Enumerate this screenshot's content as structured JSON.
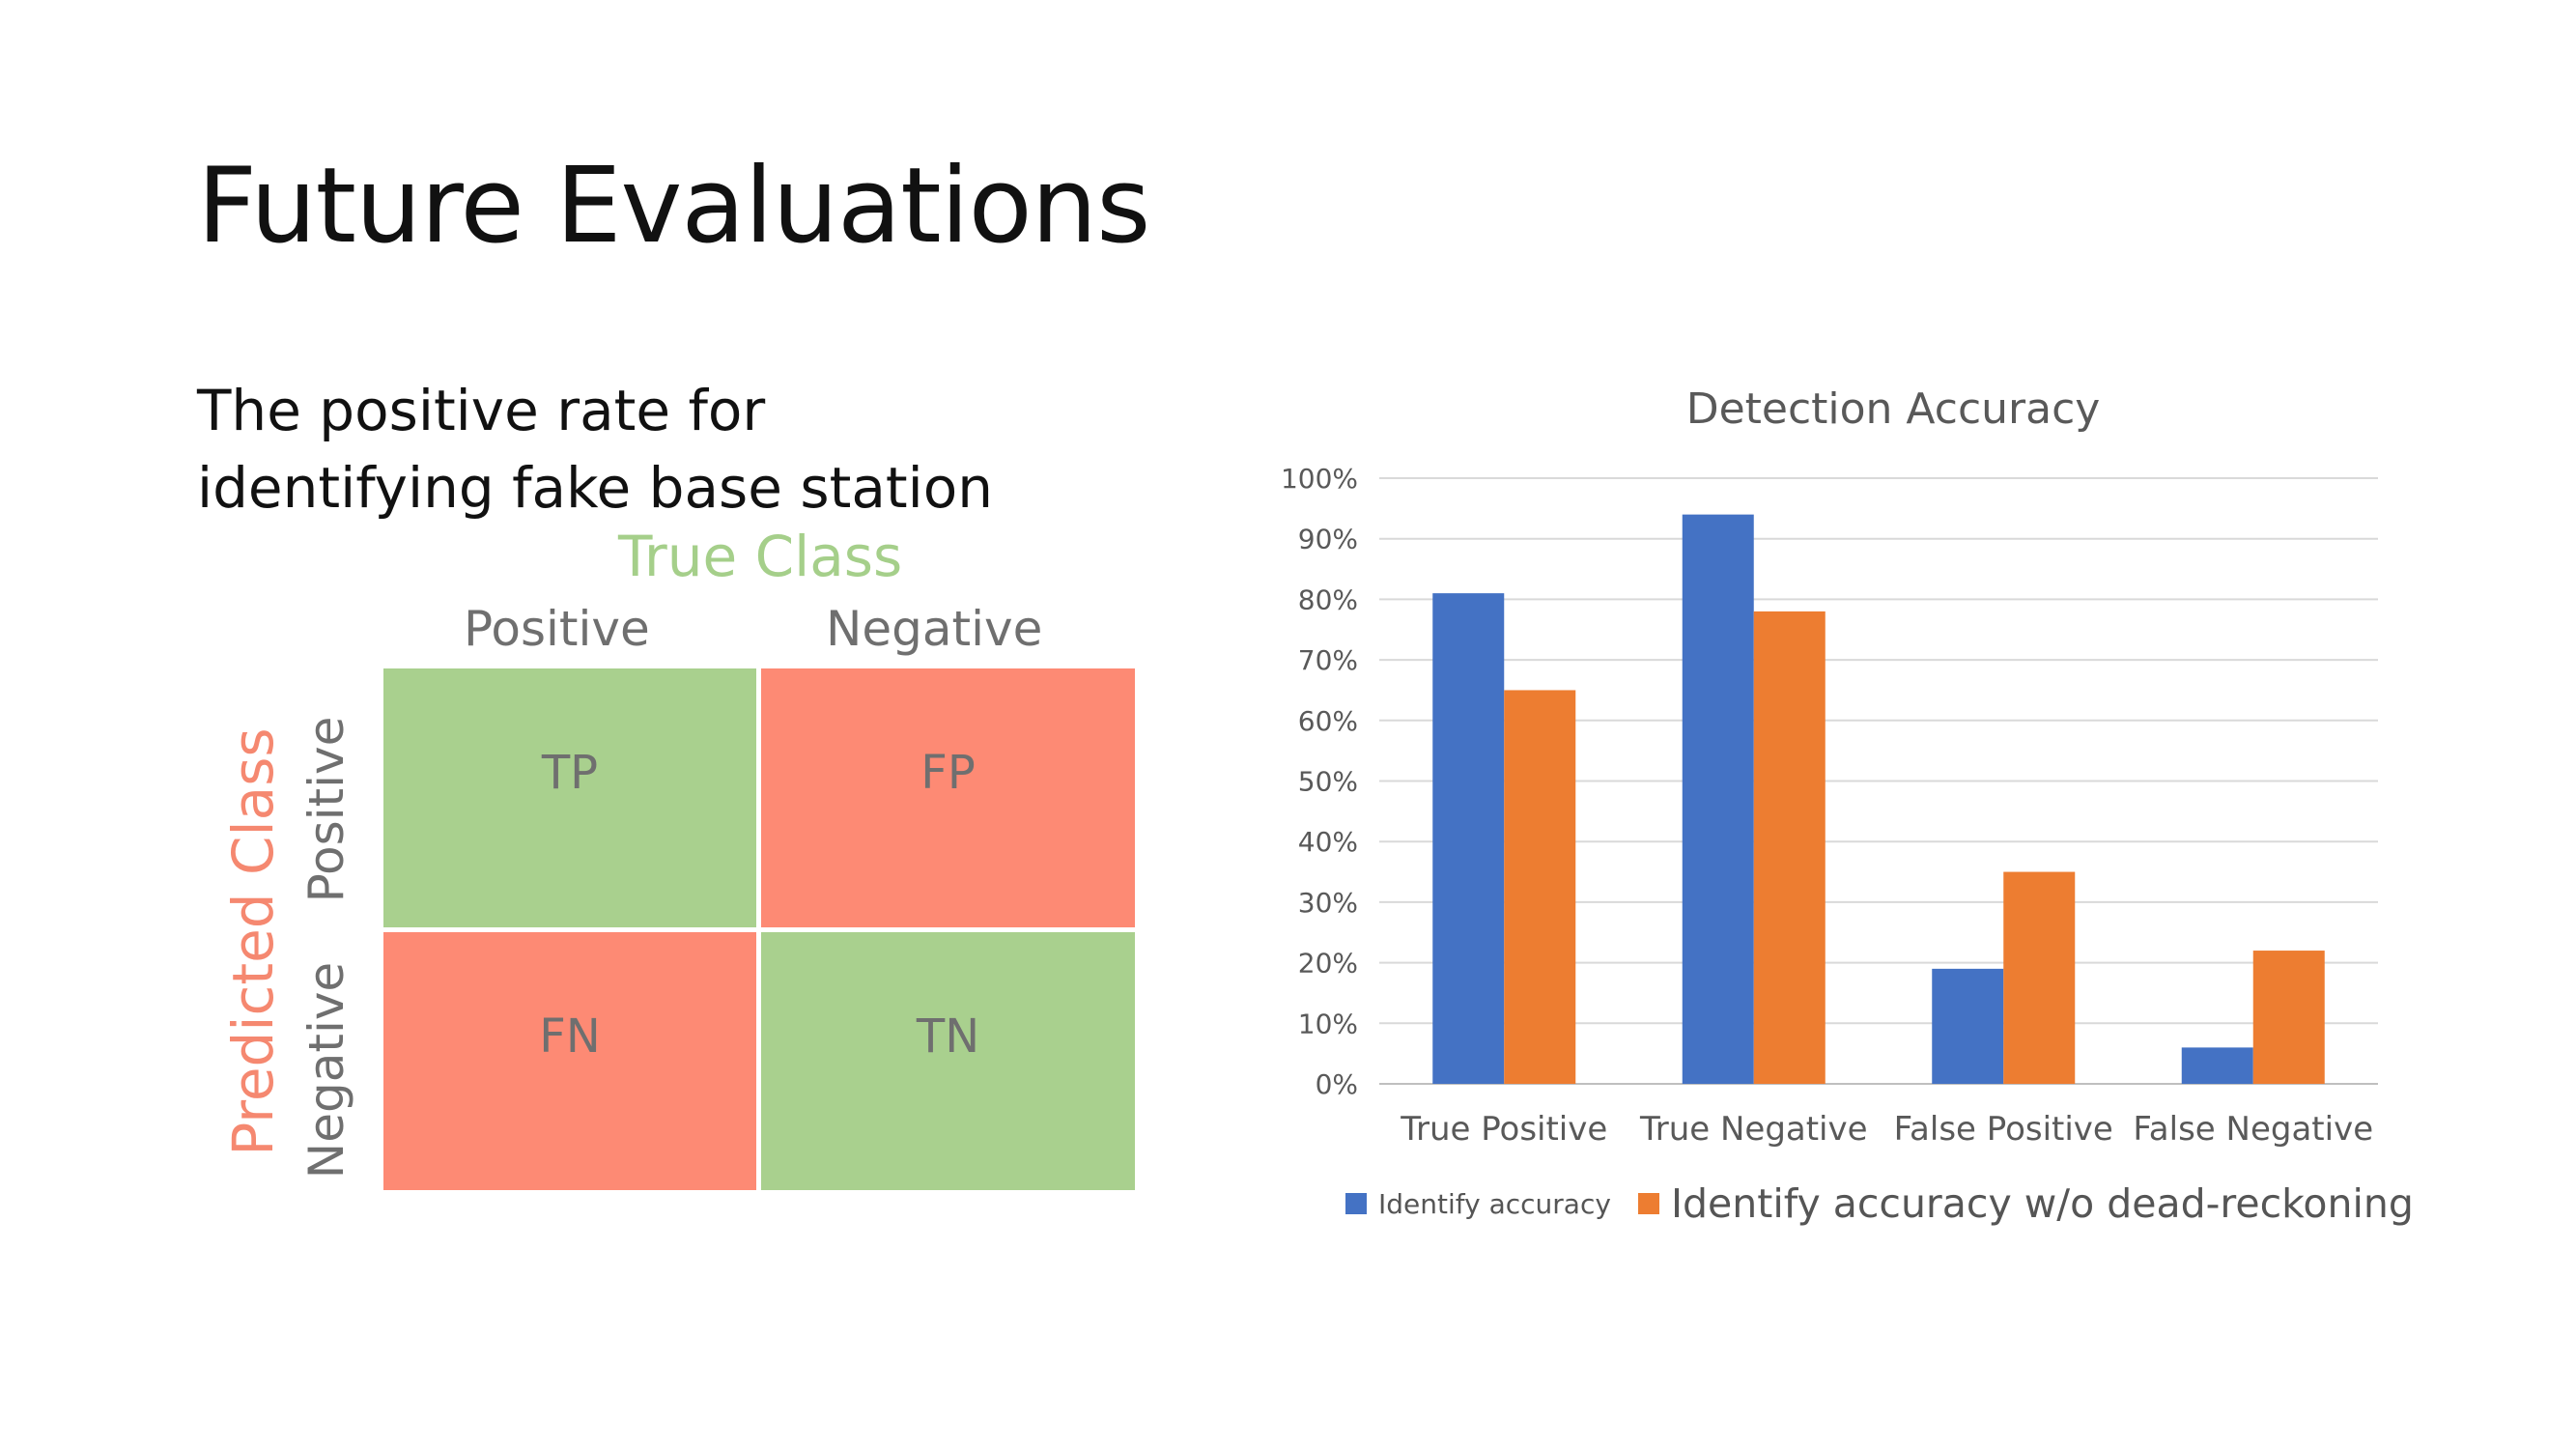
{
  "slide": {
    "title": "Future Evaluations",
    "subtitle_line1": "The positive rate for",
    "subtitle_line2": "identifying fake base station"
  },
  "confusion_matrix": {
    "true_class_label": "True Class",
    "predicted_class_label": "Predicted Class",
    "col_positive": "Positive",
    "col_negative": "Negative",
    "row_positive": "Positive",
    "row_negative": "Negative",
    "cells": {
      "tp": "TP",
      "fp": "FP",
      "fn": "FN",
      "tn": "TN"
    },
    "colors": {
      "correct": "#a9d08e",
      "wrong": "#fd8a74"
    }
  },
  "chart_data": {
    "type": "bar",
    "title": "Detection Accuracy",
    "categories": [
      "True Positive",
      "True Negative",
      "False Positive",
      "False Negative"
    ],
    "series": [
      {
        "name": "Identify accuracy",
        "values": [
          81,
          94,
          19,
          6
        ],
        "color": "#4472c4"
      },
      {
        "name": "Identify accuracy w/o dead-reckoning",
        "values": [
          65,
          78,
          35,
          22
        ],
        "color": "#ed7d31"
      }
    ],
    "ylim": [
      0,
      100
    ],
    "yticks": [
      "0%",
      "10%",
      "20%",
      "30%",
      "40%",
      "50%",
      "60%",
      "70%",
      "80%",
      "90%",
      "100%"
    ],
    "grid": true,
    "legend": "bottom"
  }
}
